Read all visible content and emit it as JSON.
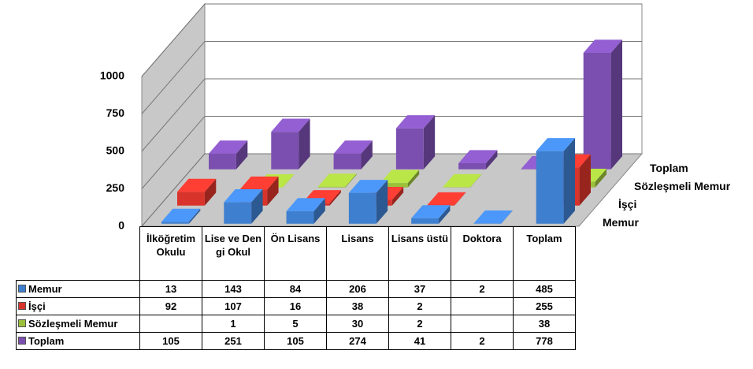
{
  "chart_data": {
    "type": "bar3d",
    "categories": [
      "İlköğretim Okulu",
      "Lise ve Dengi Okul",
      "Ön Lisans",
      "Lisans",
      "Lisans üstü",
      "Doktora",
      "Toplam"
    ],
    "series": [
      {
        "name": "Memur",
        "color": "#3f7fd0",
        "values": [
          13,
          143,
          84,
          206,
          37,
          2,
          485
        ]
      },
      {
        "name": "İşçi",
        "color": "#d9342b",
        "values": [
          92,
          107,
          16,
          38,
          2,
          null,
          255
        ]
      },
      {
        "name": "Sözleşmeli Memur",
        "color": "#9bc03b",
        "values": [
          null,
          1,
          5,
          30,
          2,
          null,
          38
        ]
      },
      {
        "name": "Toplam",
        "color": "#7b4fb0",
        "values": [
          105,
          251,
          105,
          274,
          41,
          2,
          778
        ]
      }
    ],
    "ylim": [
      0,
      1000
    ],
    "yticks": [
      0,
      250,
      500,
      750,
      1000
    ],
    "grid": true
  }
}
